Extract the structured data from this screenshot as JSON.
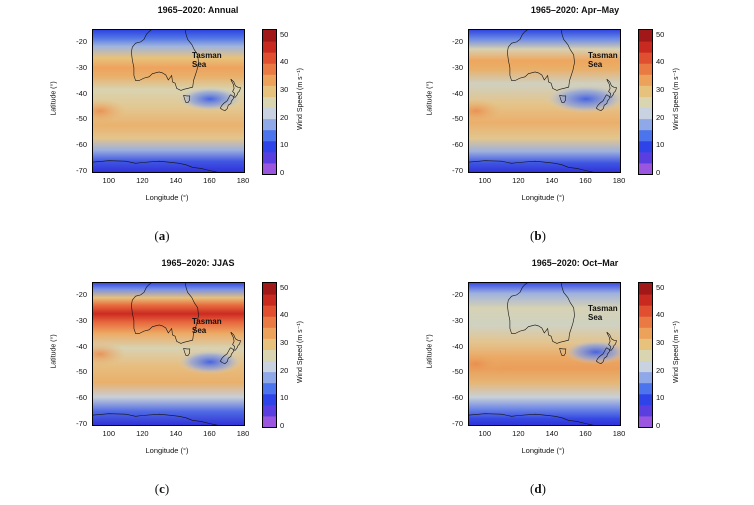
{
  "panels": [
    {
      "id": "a",
      "title": "1965–2020: Annual",
      "label": "a",
      "colorbar_label": "Wind Speed (m s⁻¹)"
    },
    {
      "id": "b",
      "title": "1965–2020: Apr–May",
      "label": "b",
      "colorbar_label": "Wind Speed (m s⁻¹)"
    },
    {
      "id": "c",
      "title": "1965–2020: JJAS",
      "label": "c",
      "colorbar_label": "Wind Speed (m s⁻¹)"
    },
    {
      "id": "d",
      "title": "1965–2020: Oct–Mar",
      "label": "d",
      "colorbar_label": "Wind Speed (m s⁻¹)"
    }
  ],
  "axes": {
    "xlabel": "Longitude (°)",
    "ylabel": "Latitude (°)",
    "xticks": [
      "100",
      "120",
      "140",
      "160",
      "180"
    ],
    "yticks": [
      "-20",
      "-30",
      "-40",
      "-50",
      "-60",
      "-70"
    ],
    "xrange": [
      90,
      180
    ],
    "yrange": [
      -70,
      -15
    ]
  },
  "colorbar": {
    "ticks": [
      "50",
      "40",
      "30",
      "20",
      "10",
      "0"
    ],
    "range": [
      0,
      52
    ],
    "colors": [
      "#9b56e0",
      "#5a3ee0",
      "#2e44e8",
      "#4c74ec",
      "#8fa8e8",
      "#c8d2e0",
      "#d8d5b0",
      "#e6c27c",
      "#eca25a",
      "#ea7a44",
      "#e05030",
      "#c82a20",
      "#a01818"
    ]
  },
  "annotation": {
    "line1": "Tasman",
    "line2": "Sea"
  },
  "map_region": "Australia, New Zealand and Southern Ocean"
}
